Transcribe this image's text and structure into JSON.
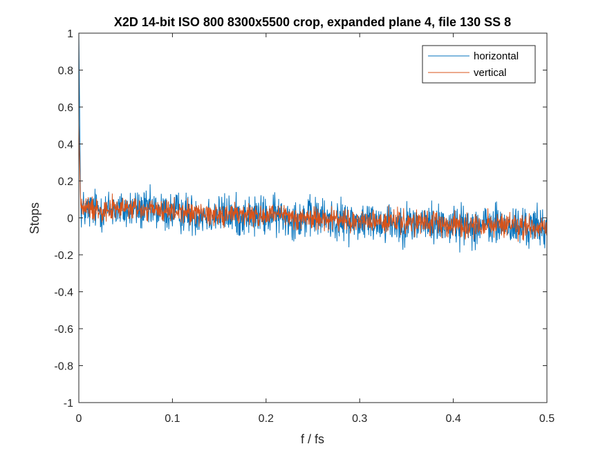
{
  "chart_data": {
    "type": "line",
    "title": "X2D 14-bit ISO 800 8300x5500 crop, expanded plane 4, file 130 SS 8",
    "xlabel": "f / fs",
    "ylabel": "Stops",
    "xlim": [
      0,
      0.5
    ],
    "ylim": [
      -1,
      1
    ],
    "xticks": [
      0,
      0.1,
      0.2,
      0.3,
      0.4,
      0.5
    ],
    "xtick_labels": [
      "0",
      "0.1",
      "0.2",
      "0.3",
      "0.4",
      "0.5"
    ],
    "yticks": [
      -1,
      -0.8,
      -0.6,
      -0.4,
      -0.2,
      0,
      0.2,
      0.4,
      0.6,
      0.8,
      1
    ],
    "ytick_labels": [
      "-1",
      "-0.8",
      "-0.6",
      "-0.4",
      "-0.2",
      "0",
      "0.2",
      "0.4",
      "0.6",
      "0.8",
      "1"
    ],
    "grid": false,
    "legend_position": "top-right",
    "series": [
      {
        "name": "horizontal",
        "color": "#0072BD",
        "x": [
          0,
          0.002,
          0.01,
          0.02,
          0.03,
          0.04,
          0.05,
          0.06,
          0.07,
          0.08,
          0.09,
          0.1,
          0.11,
          0.12,
          0.13,
          0.14,
          0.15,
          0.16,
          0.17,
          0.18,
          0.19,
          0.2,
          0.21,
          0.22,
          0.23,
          0.24,
          0.25,
          0.26,
          0.27,
          0.28,
          0.29,
          0.3,
          0.31,
          0.32,
          0.33,
          0.34,
          0.35,
          0.36,
          0.37,
          0.38,
          0.39,
          0.4,
          0.41,
          0.42,
          0.43,
          0.44,
          0.45,
          0.46,
          0.47,
          0.48,
          0.49,
          0.5
        ],
        "y": [
          1.0,
          0.05,
          0.04,
          0.05,
          0.04,
          0.05,
          0.04,
          0.05,
          0.04,
          0.04,
          0.03,
          0.03,
          0.03,
          0.02,
          0.02,
          0.02,
          0.02,
          0.02,
          0.01,
          0.01,
          0.01,
          0.01,
          0.01,
          0.01,
          0.0,
          0.0,
          0.0,
          0.0,
          -0.01,
          -0.02,
          -0.02,
          -0.02,
          -0.02,
          -0.02,
          -0.02,
          -0.03,
          -0.03,
          -0.03,
          -0.03,
          -0.03,
          -0.03,
          -0.04,
          -0.04,
          -0.04,
          -0.04,
          -0.04,
          -0.04,
          -0.05,
          -0.05,
          -0.05,
          -0.05,
          -0.05
        ]
      },
      {
        "name": "vertical",
        "color": "#D95319",
        "x": [
          0,
          0.002,
          0.01,
          0.02,
          0.03,
          0.04,
          0.05,
          0.06,
          0.07,
          0.08,
          0.09,
          0.1,
          0.11,
          0.12,
          0.13,
          0.14,
          0.15,
          0.16,
          0.17,
          0.18,
          0.19,
          0.2,
          0.21,
          0.22,
          0.23,
          0.24,
          0.25,
          0.26,
          0.27,
          0.28,
          0.29,
          0.3,
          0.31,
          0.32,
          0.33,
          0.34,
          0.35,
          0.36,
          0.37,
          0.38,
          0.39,
          0.4,
          0.41,
          0.42,
          0.43,
          0.44,
          0.45,
          0.46,
          0.47,
          0.48,
          0.49,
          0.5
        ],
        "y": [
          0.51,
          0.06,
          0.05,
          0.05,
          0.05,
          0.05,
          0.05,
          0.05,
          0.04,
          0.04,
          0.04,
          0.03,
          0.03,
          0.03,
          0.03,
          0.02,
          0.02,
          0.02,
          0.02,
          0.02,
          0.01,
          0.01,
          0.01,
          0.01,
          0.0,
          0.0,
          0.0,
          0.0,
          -0.01,
          -0.01,
          -0.02,
          -0.02,
          -0.02,
          -0.02,
          -0.02,
          -0.02,
          -0.03,
          -0.03,
          -0.03,
          -0.03,
          -0.03,
          -0.03,
          -0.04,
          -0.04,
          -0.04,
          -0.04,
          -0.04,
          -0.04,
          -0.05,
          -0.05,
          -0.05,
          -0.05
        ]
      }
    ]
  }
}
